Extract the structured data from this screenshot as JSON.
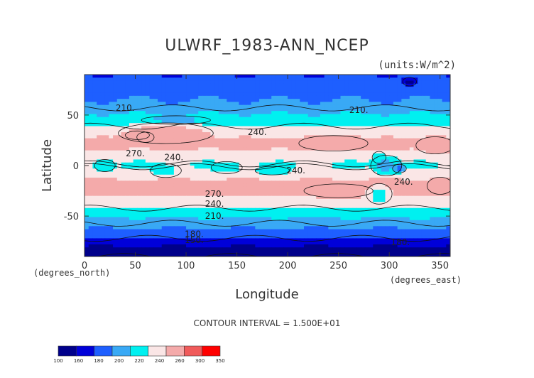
{
  "chart_data": {
    "type": "heatmap",
    "title": "ULWRF_1983-ANN_NCEP",
    "units": "(units:W/m^2)",
    "xlabel": "Longitude",
    "ylabel": "Latitude",
    "x_unit_label": "(degrees_east)",
    "y_unit_label": "(degrees_north)",
    "xlim": [
      0,
      360
    ],
    "ylim": [
      -90,
      90
    ],
    "xticks": [
      0,
      50,
      100,
      150,
      200,
      250,
      300,
      350
    ],
    "yticks": [
      -50,
      0,
      50
    ],
    "contour_interval_text": "CONTOUR INTERVAL = 1.500E+01",
    "contour_labels": [
      {
        "text": "210.",
        "lon": 40,
        "lat": 57
      },
      {
        "text": "210.",
        "lon": 270,
        "lat": 55
      },
      {
        "text": "240.",
        "lon": 170,
        "lat": 33
      },
      {
        "text": "270.",
        "lon": 50,
        "lat": 12
      },
      {
        "text": "240.",
        "lon": 88,
        "lat": 8
      },
      {
        "text": "240.",
        "lon": 208,
        "lat": -5
      },
      {
        "text": "240.",
        "lon": 314,
        "lat": -16
      },
      {
        "text": "270.",
        "lon": 128,
        "lat": -28
      },
      {
        "text": "240.",
        "lon": 128,
        "lat": -38
      },
      {
        "text": "210.",
        "lon": 128,
        "lat": -50
      },
      {
        "text": "180.",
        "lon": 108,
        "lat": -68
      },
      {
        "text": "150.",
        "lon": 108,
        "lat": -74
      },
      {
        "text": "180.",
        "lon": 311,
        "lat": -76
      }
    ],
    "colorbar": {
      "levels": [
        100,
        160,
        180,
        200,
        220,
        240,
        260,
        300,
        350
      ],
      "colors": [
        "#00008b",
        "#0000d9",
        "#1e5fff",
        "#39a9f5",
        "#00f0f0",
        "#fae6e6",
        "#f4aaaa",
        "#f05a5a",
        "#ff0000"
      ]
    },
    "zonal_profile": [
      {
        "lat": -90,
        "value": 150
      },
      {
        "lat": -80,
        "value": 160
      },
      {
        "lat": -70,
        "value": 185
      },
      {
        "lat": -60,
        "value": 205
      },
      {
        "lat": -50,
        "value": 222
      },
      {
        "lat": -40,
        "value": 245
      },
      {
        "lat": -30,
        "value": 262
      },
      {
        "lat": -20,
        "value": 268
      },
      {
        "lat": -10,
        "value": 255
      },
      {
        "lat": 0,
        "value": 238
      },
      {
        "lat": 10,
        "value": 250
      },
      {
        "lat": 20,
        "value": 268
      },
      {
        "lat": 30,
        "value": 258
      },
      {
        "lat": 40,
        "value": 238
      },
      {
        "lat": 50,
        "value": 222
      },
      {
        "lat": 60,
        "value": 205
      },
      {
        "lat": 70,
        "value": 195
      },
      {
        "lat": 80,
        "value": 185
      },
      {
        "lat": 90,
        "value": 180
      }
    ],
    "regions": [
      {
        "type": "ellipse",
        "lon": 80,
        "lat": 32,
        "rlon": 55,
        "rlat": 12,
        "value": 270
      },
      {
        "type": "ellipse",
        "lon": 60,
        "lat": 28,
        "rlon": 10,
        "rlat": 6,
        "value": 300
      },
      {
        "type": "ellipse",
        "lon": 245,
        "lat": 22,
        "rlon": 40,
        "rlat": 9,
        "value": 275
      },
      {
        "type": "ellipse",
        "lon": 345,
        "lat": 20,
        "rlon": 22,
        "rlat": 10,
        "value": 275
      },
      {
        "type": "ellipse",
        "lon": 20,
        "lat": 0,
        "rlon": 12,
        "rlat": 7,
        "value": 215
      },
      {
        "type": "ellipse",
        "lon": 80,
        "lat": -5,
        "rlon": 18,
        "rlat": 8,
        "value": 232
      },
      {
        "type": "ellipse",
        "lon": 140,
        "lat": -2,
        "rlon": 18,
        "rlat": 7,
        "value": 230
      },
      {
        "type": "ellipse",
        "lon": 185,
        "lat": -5,
        "rlon": 20,
        "rlat": 5,
        "value": 225
      },
      {
        "type": "ellipse",
        "lon": 297,
        "lat": 0,
        "rlon": 18,
        "rlat": 12,
        "value": 210
      },
      {
        "type": "ellipse",
        "lon": 290,
        "lat": 8,
        "rlon": 8,
        "rlat": 7,
        "value": 225
      },
      {
        "type": "ellipse",
        "lon": 310,
        "lat": -3,
        "rlon": 8,
        "rlat": 5,
        "value": 190
      },
      {
        "type": "ellipse",
        "lon": 52,
        "lat": 30,
        "rlon": 14,
        "rlat": 5,
        "value": 300
      },
      {
        "type": "ellipse",
        "lon": 90,
        "lat": 45,
        "rlon": 40,
        "rlat": 5,
        "value": 215
      },
      {
        "type": "ellipse",
        "lon": 320,
        "lat": 83,
        "rlon": 8,
        "rlat": 5,
        "value": 150
      },
      {
        "type": "ellipse",
        "lon": 250,
        "lat": -25,
        "rlon": 40,
        "rlat": 8,
        "value": 272
      },
      {
        "type": "ellipse",
        "lon": 350,
        "lat": -20,
        "rlon": 15,
        "rlat": 10,
        "value": 272
      },
      {
        "type": "ellipse",
        "lon": 290,
        "lat": -28,
        "rlon": 15,
        "rlat": 12,
        "value": 232
      }
    ]
  }
}
